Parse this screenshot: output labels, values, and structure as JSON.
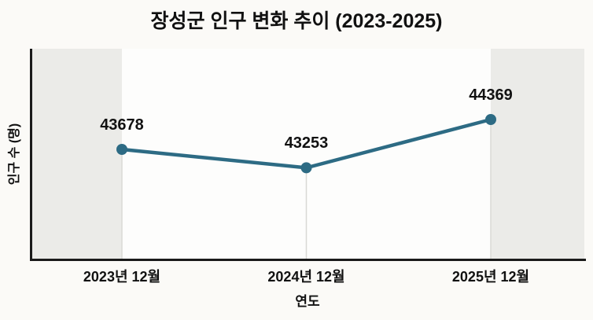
{
  "chart_data": {
    "type": "line",
    "title": "장성군 인구 변화 추이 (2023-2025)",
    "xlabel": "연도",
    "ylabel": "인구 수 (명)",
    "categories": [
      "2023년 12월",
      "2024년 12월",
      "2025년 12월"
    ],
    "series": [
      {
        "name": "인구 수",
        "values": [
          43678,
          43253,
          44369
        ]
      }
    ],
    "data_labels": [
      "43678",
      "43253",
      "44369"
    ],
    "legend": "none",
    "grid": "faint vertical line at each data point",
    "shaded_margin_bands": "left and right of data range",
    "ylim_approx": [
      42800,
      44900
    ]
  },
  "colors": {
    "line": "#2d6b84",
    "marker": "#2d6b84",
    "band": "#ebebe8",
    "plot_background": "#fdfdfc",
    "page_background": "#fbfaf7",
    "axis": "#1a1a1a",
    "text": "#111111",
    "gridline": "#d9d9d5"
  }
}
